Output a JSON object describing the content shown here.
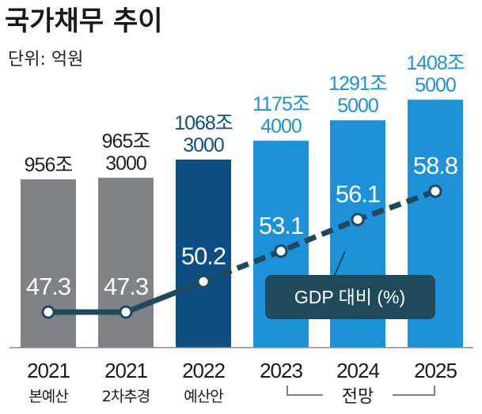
{
  "chart_data": {
    "type": "bar",
    "title": "국가채무 추이",
    "unit_label": "단위: 억원",
    "categories": [
      "2021",
      "2021",
      "2022",
      "2023",
      "2024",
      "2025"
    ],
    "category_sublabels": [
      "본예산",
      "2차추경",
      "예산안",
      "",
      "",
      ""
    ],
    "forecast_label": "전망",
    "series": [
      {
        "name": "국가채무",
        "values": [
          9560000,
          9653000,
          10683000,
          11754000,
          12915000,
          14085000
        ],
        "labels": [
          [
            "956조"
          ],
          [
            "965조",
            "3000"
          ],
          [
            "1068조",
            "3000"
          ],
          [
            "1175조",
            "4000"
          ],
          [
            "1291조",
            "5000"
          ],
          [
            "1408조",
            "5000"
          ]
        ]
      },
      {
        "name": "GDP 대비 (%)",
        "type": "line",
        "values": [
          47.3,
          47.3,
          50.2,
          53.1,
          56.1,
          58.8
        ]
      }
    ],
    "legend": "GDP 대비 (%)",
    "colors": {
      "bar_past": "#808285",
      "bar_2022": "#0d4f84",
      "bar_forecast": "#1d92d9",
      "label_past": "#222222",
      "label_future": "#1d92d9",
      "line": "#1f4a5c",
      "legend_bg": "#1f4a5c"
    }
  }
}
